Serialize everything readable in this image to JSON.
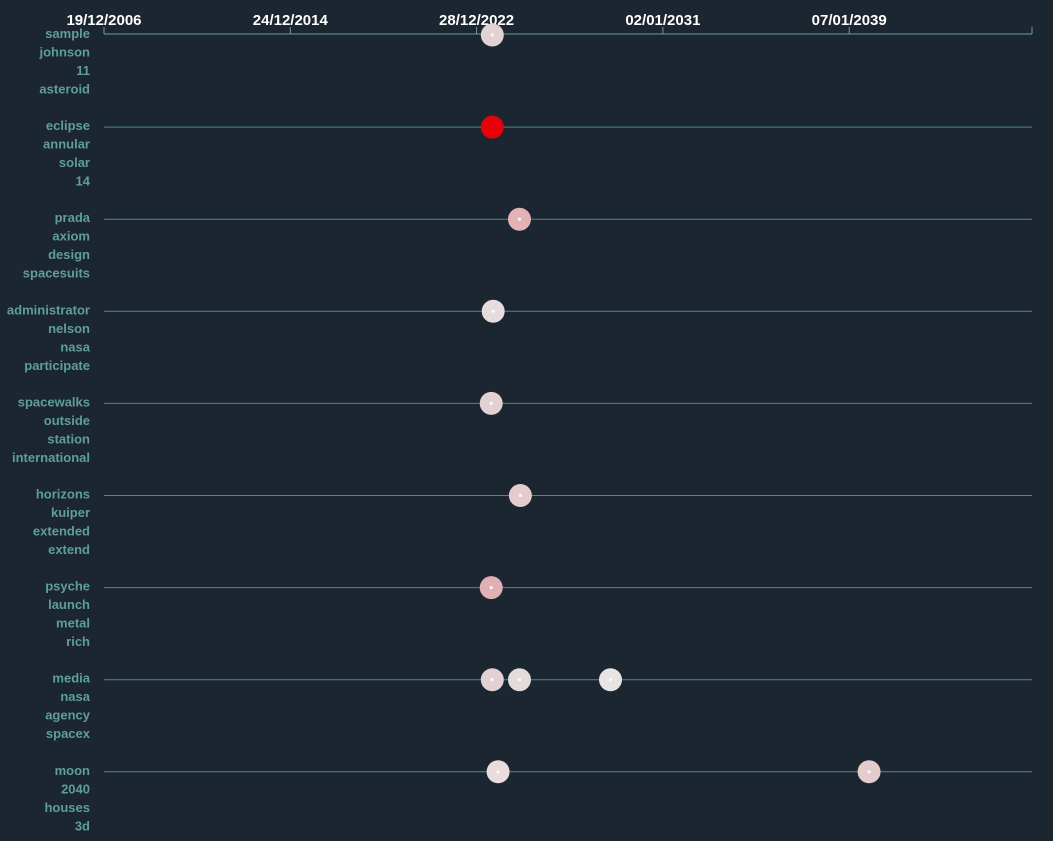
{
  "chart_data": {
    "type": "scatter",
    "x_axis": {
      "scale": "time",
      "ticks": [
        "19/12/2006",
        "24/12/2014",
        "28/12/2022",
        "02/01/2031",
        "07/01/2039"
      ],
      "range": [
        "2006-12-19",
        "2047-01-01"
      ]
    },
    "grid": false,
    "rows": [
      {
        "label": [
          "sample",
          "johnson",
          "11",
          "asteroid"
        ],
        "points": [
          {
            "date": "2023-09-01",
            "color": "#e2d2d4"
          }
        ]
      },
      {
        "label": [
          "eclipse",
          "annular",
          "solar",
          "14"
        ],
        "points": [
          {
            "date": "2023-09-01",
            "color": "#e8000a"
          }
        ]
      },
      {
        "label": [
          "prada",
          "axiom",
          "design",
          "spacesuits"
        ],
        "points": [
          {
            "date": "2024-11-01",
            "color": "#e2b2b6"
          }
        ]
      },
      {
        "label": [
          "administrator",
          "nelson",
          "nasa",
          "participate"
        ],
        "points": [
          {
            "date": "2023-09-15",
            "color": "#e6dcde"
          }
        ]
      },
      {
        "label": [
          "spacewalks",
          "outside",
          "station",
          "international"
        ],
        "points": [
          {
            "date": "2023-08-15",
            "color": "#e2d0d2"
          }
        ]
      },
      {
        "label": [
          "horizons",
          "kuiper",
          "extended",
          "extend"
        ],
        "points": [
          {
            "date": "2024-11-15",
            "color": "#e4ccce"
          }
        ]
      },
      {
        "label": [
          "psyche",
          "launch",
          "metal",
          "rich"
        ],
        "points": [
          {
            "date": "2023-08-15",
            "color": "#e0b0b4"
          }
        ]
      },
      {
        "label": [
          "media",
          "nasa",
          "agency",
          "spacex"
        ],
        "points": [
          {
            "date": "2023-09-01",
            "color": "#e2d0d2"
          },
          {
            "date": "2024-11-01",
            "color": "#e2dcdc"
          },
          {
            "date": "2028-10-01",
            "color": "#e8e4e4"
          }
        ]
      },
      {
        "label": [
          "moon",
          "2040",
          "houses",
          "3d"
        ],
        "points": [
          {
            "date": "2023-12-01",
            "color": "#e8dcdc"
          },
          {
            "date": "2039-11-15",
            "color": "#e2cccc"
          }
        ]
      }
    ]
  }
}
